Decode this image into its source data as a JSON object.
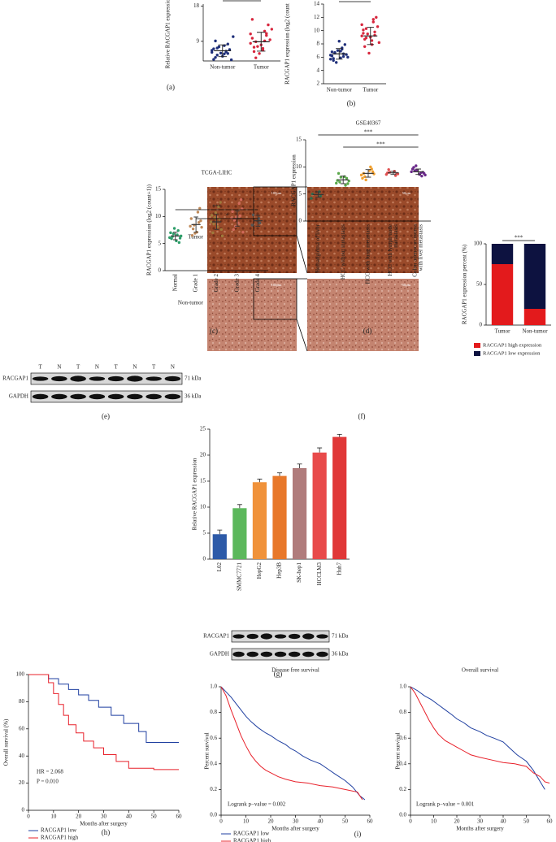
{
  "chart_data": [
    {
      "type": "dot",
      "caption": "(a)",
      "y_label": "Relative RACGAP1 expression",
      "categories": [
        "Non-tumor",
        "Tumor"
      ],
      "values": [
        [
          6.2,
          5.8,
          7.1,
          6.5,
          4.9,
          8.3,
          5.5,
          6.9,
          7.6,
          4.3,
          6.0,
          10.2,
          5.2,
          6.7,
          7.9,
          4.4,
          6.3,
          9.1,
          5.9,
          7.3
        ],
        [
          8.5,
          7.2,
          9.8,
          11.6,
          6.4,
          10.5,
          8.9,
          13.2,
          7.7,
          9.4,
          5.9,
          12.1,
          8.1,
          10.9,
          6.8,
          14.6,
          9.1,
          7.5,
          11.0,
          4.8
        ]
      ],
      "mean": [
        6.6,
        8.9
      ],
      "sd": [
        1.5,
        2.4
      ],
      "colors": [
        "#1f2f7a",
        "#d7263d"
      ],
      "bar_color": "#222",
      "ylim": [
        4,
        18.5
      ],
      "yticks": [
        9,
        18
      ]
    },
    {
      "type": "dot",
      "caption": "(b)",
      "y_label": "RACGAP1 expression (log2 (count",
      "categories": [
        "Non-tumor",
        "Tumor"
      ],
      "values": [
        [
          6.3,
          5.9,
          6.8,
          7.2,
          5.5,
          6.1,
          6.6,
          7.9,
          5.2,
          6.4,
          7.0,
          6.0,
          8.4,
          5.7,
          6.9,
          6.2,
          7.4,
          5.8,
          6.5,
          6.7
        ],
        [
          9.2,
          8.5,
          10.1,
          11.3,
          7.6,
          9.8,
          8.9,
          12.0,
          9.5,
          10.6,
          6.6,
          8.2,
          9.0,
          10.9,
          7.9,
          9.6,
          11.7,
          8.7,
          9.3,
          10.3
        ]
      ],
      "mean": [
        6.5,
        9.2
      ],
      "sd": [
        0.8,
        1.3
      ],
      "colors": [
        "#1f2f7a",
        "#d7263d"
      ],
      "bar_color": "#222",
      "ylim": [
        2,
        14
      ],
      "yticks": [
        2,
        4,
        6,
        8,
        10,
        12,
        14
      ]
    },
    {
      "type": "dot",
      "caption": "(c)",
      "title": "TCGA-LIHC",
      "y_label": "RACGAP1 expression (log2 (count+1))",
      "rotate_labels": true,
      "categories": [
        "Normal",
        "Grade 1",
        "Grade 2",
        "Grade 3",
        "Grade 4"
      ],
      "values": [
        [
          6.1,
          5.5,
          7.0,
          6.6,
          5.9,
          7.4,
          6.3,
          5.2,
          6.8,
          6.0,
          7.8,
          6.4
        ],
        [
          8.2,
          7.1,
          9.6,
          10.8,
          6.5,
          8.9,
          7.7,
          11.5,
          8.4,
          9.2,
          6.9,
          8.0
        ],
        [
          9.0,
          8.1,
          10.2,
          11.8,
          7.0,
          9.5,
          8.6,
          12.6,
          9.8,
          7.6,
          10.7,
          6.4
        ],
        [
          9.7,
          8.8,
          10.9,
          12.4,
          7.6,
          10.1,
          9.3,
          13.1,
          8.2,
          11.4,
          9.9,
          7.1
        ],
        [
          8.4,
          9.6,
          10.3,
          8.8
        ]
      ],
      "mean": [
        6.4,
        8.5,
        9.0,
        9.6,
        9.2
      ],
      "sd": [
        0.7,
        1.4,
        1.4,
        1.4,
        1.0
      ],
      "colors": [
        "#2e9e6a",
        "#c08a5a",
        "#9e7a3c",
        "#d06a5a",
        "#555555"
      ],
      "bar_color": "#333",
      "ylim": [
        0,
        15
      ],
      "yticks": [
        0,
        5,
        10,
        15
      ],
      "brackets": [
        {
          "label": "***",
          "from": 0,
          "to": 4
        },
        {
          "label": "*",
          "from": 1,
          "to": 4
        }
      ]
    },
    {
      "type": "dot",
      "caption": "(d)",
      "title": "GSE40367",
      "y_label": "RACGAP1 expression",
      "rotate_labels": true,
      "categories": [
        [
          "Hemangioma of liver"
        ],
        [
          "HCC without metastasis"
        ],
        [
          "HCC with lung metastasis"
        ],
        [
          "HCC with lymph node",
          "metastasis"
        ],
        [
          "Colon adenocarcinoma",
          "with liver metastasis"
        ]
      ],
      "values": [
        [
          4.2,
          5.4,
          5.0,
          4.6
        ],
        [
          7.0,
          8.2,
          7.5,
          6.6,
          8.8,
          7.9,
          7.2,
          6.9,
          8.1,
          7.4
        ],
        [
          8.5,
          9.3,
          7.9,
          10.0,
          8.8,
          9.6,
          8.2,
          9.1,
          7.6,
          8.7
        ],
        [
          8.6,
          9.2,
          8.9,
          8.4,
          9.5,
          8.8,
          9.0,
          8.7
        ],
        [
          9.1,
          8.6,
          9.6,
          8.9,
          9.9,
          8.3,
          9.3,
          9.0,
          10.2,
          8.8,
          9.4,
          8.5
        ]
      ],
      "mean": [
        4.9,
        7.6,
        8.8,
        8.9,
        9.1
      ],
      "sd": [
        0.5,
        0.7,
        0.7,
        0.3,
        0.5
      ],
      "colors": [
        "#2e6e4e",
        "#5aa84a",
        "#f0a030",
        "#e05050",
        "#6a2a8a"
      ],
      "bar_color": "#333",
      "ylim": [
        0,
        15
      ],
      "yticks": [
        0,
        5,
        10,
        15
      ],
      "brackets": [
        {
          "label": "***",
          "from": 0,
          "to": 4
        },
        {
          "label": "***",
          "from": 1,
          "to": 4
        }
      ]
    },
    {
      "type": "stacked_bar",
      "caption": "(f)",
      "y_label": "RACGAP1 expression percent (%)",
      "categories": [
        "Tumor",
        "Non-tumor"
      ],
      "series": [
        {
          "name": "RACGAP1 high expression",
          "color": "#e31a1c",
          "values": [
            75,
            20
          ]
        },
        {
          "name": "RACGAP1 low expression",
          "color": "#0d1240",
          "values": [
            25,
            80
          ]
        }
      ],
      "ylim": [
        0,
        100
      ],
      "yticks": [
        0,
        50,
        100
      ],
      "brackets": [
        {
          "label": "***",
          "from": 0,
          "to": 1
        }
      ]
    },
    {
      "type": "bar",
      "caption": "(g)",
      "y_label": "Relative RACGAP1 expression",
      "rotate_labels": true,
      "categories": [
        "L02",
        "SMMC7721",
        "HepG2",
        "Hep3B",
        "SK-hep1",
        "HCCLM3",
        "Huh7"
      ],
      "values": [
        4.8,
        9.8,
        14.8,
        16,
        17.5,
        20.5,
        23.5
      ],
      "errors": [
        0.8,
        0.7,
        0.6,
        0.6,
        0.8,
        0.9,
        0.5
      ],
      "colors": [
        "#2d5aa8",
        "#5cb85c",
        "#f0923a",
        "#e8782a",
        "#b07c7c",
        "#e84a4a",
        "#e03838"
      ],
      "ylim": [
        0,
        25
      ],
      "yticks": [
        0,
        5,
        10,
        15,
        20,
        25
      ]
    },
    {
      "type": "line",
      "caption": "(h)",
      "y_label": "Overall survival (%)",
      "x_label": "Months after surgery",
      "annotations": [
        "HR = 2.068",
        "P = 0.010"
      ],
      "series": [
        {
          "name": "RACGAP1 low",
          "color": "#1f3fa0",
          "x": [
            0,
            8,
            8,
            12,
            12,
            16,
            16,
            20,
            20,
            24,
            24,
            28,
            28,
            33,
            33,
            38,
            38,
            44,
            44,
            47,
            47,
            60
          ],
          "values": [
            100,
            100,
            97,
            97,
            93,
            93,
            89,
            89,
            85,
            85,
            81,
            81,
            76,
            76,
            70,
            70,
            64,
            64,
            58,
            58,
            50,
            50
          ]
        },
        {
          "name": "RACGAP1 high",
          "color": "#e8202a",
          "x": [
            0,
            8,
            8,
            10,
            10,
            12,
            12,
            14,
            14,
            16,
            16,
            19,
            19,
            22,
            22,
            26,
            26,
            30,
            30,
            35,
            35,
            40,
            40,
            50,
            50,
            60
          ],
          "values": [
            100,
            100,
            94,
            94,
            86,
            86,
            78,
            78,
            70,
            70,
            63,
            63,
            57,
            57,
            51,
            51,
            46,
            46,
            41,
            41,
            36,
            36,
            31,
            31,
            30,
            30
          ]
        }
      ],
      "xlim": [
        0,
        60
      ],
      "xticks": [
        0,
        10,
        20,
        30,
        40,
        50,
        60
      ],
      "ylim": [
        0,
        100
      ],
      "yticks": [
        0,
        20,
        40,
        60,
        80,
        100
      ]
    },
    {
      "type": "line",
      "caption": "(i)",
      "title": "Disease free survival",
      "y_label": "Percent survival",
      "x_label": "Months after surgery",
      "annotations": [
        "Logrank p−value = 0.002"
      ],
      "series": [
        {
          "name": "RACGAP1 low",
          "color": "#1f3fa0",
          "x": [
            0,
            2,
            4,
            6,
            8,
            10,
            12,
            15,
            18,
            20,
            23,
            26,
            28,
            30,
            33,
            36,
            40,
            43,
            46,
            50,
            53,
            56,
            58
          ],
          "values": [
            1,
            0.96,
            0.92,
            0.87,
            0.82,
            0.77,
            0.73,
            0.68,
            0.64,
            0.62,
            0.58,
            0.55,
            0.52,
            0.5,
            0.46,
            0.43,
            0.4,
            0.36,
            0.32,
            0.27,
            0.22,
            0.15,
            0.12
          ]
        },
        {
          "name": "RACGAP1 high",
          "color": "#e8202a",
          "x": [
            0,
            2,
            4,
            6,
            8,
            10,
            12,
            14,
            16,
            18,
            20,
            23,
            26,
            30,
            35,
            40,
            45,
            50,
            55,
            57
          ],
          "values": [
            1,
            0.93,
            0.82,
            0.72,
            0.62,
            0.54,
            0.47,
            0.42,
            0.38,
            0.35,
            0.33,
            0.3,
            0.28,
            0.26,
            0.25,
            0.23,
            0.22,
            0.2,
            0.18,
            0.12
          ]
        }
      ],
      "xlim": [
        0,
        60
      ],
      "xticks": [
        0,
        10,
        20,
        30,
        40,
        50,
        60
      ],
      "ylim": [
        0,
        1
      ],
      "yticks": [
        {
          "value": 0,
          "label": "0.0"
        },
        0.2,
        0.4,
        0.6,
        0.8,
        {
          "value": 1,
          "label": "1.0"
        }
      ]
    },
    {
      "type": "line",
      "title": "Overall survival",
      "y_label": "Percent survival",
      "x_label": "Months after surgery",
      "annotations": [
        "Logrank p−value = 0.001"
      ],
      "series": [
        {
          "color": "#1f3fa0",
          "x": [
            0,
            3,
            6,
            9,
            12,
            15,
            18,
            20,
            23,
            26,
            30,
            33,
            36,
            40,
            43,
            46,
            50,
            53,
            56,
            58
          ],
          "values": [
            1,
            0.97,
            0.93,
            0.9,
            0.86,
            0.82,
            0.78,
            0.75,
            0.72,
            0.68,
            0.65,
            0.62,
            0.6,
            0.57,
            0.52,
            0.47,
            0.42,
            0.35,
            0.26,
            0.2
          ]
        },
        {
          "color": "#e8202a",
          "x": [
            0,
            2,
            4,
            6,
            8,
            10,
            12,
            15,
            18,
            20,
            23,
            26,
            30,
            35,
            40,
            45,
            50,
            53,
            56,
            58,
            60
          ],
          "values": [
            1,
            0.95,
            0.88,
            0.81,
            0.74,
            0.68,
            0.63,
            0.58,
            0.55,
            0.53,
            0.5,
            0.47,
            0.45,
            0.43,
            0.41,
            0.4,
            0.38,
            0.33,
            0.3,
            0.26,
            0.25
          ]
        }
      ],
      "xlim": [
        0,
        60
      ],
      "xticks": [
        0,
        10,
        20,
        30,
        40,
        50,
        60
      ],
      "ylim": [
        0,
        1
      ],
      "yticks": [
        {
          "value": 0,
          "label": "0.0"
        },
        0.2,
        0.4,
        0.6,
        0.8,
        {
          "value": 1,
          "label": "1.0"
        }
      ]
    }
  ],
  "blot_e": {
    "lanes": [
      "T",
      "N",
      "T",
      "N",
      "T",
      "N",
      "T",
      "N"
    ],
    "rows": [
      "RACGAP1",
      "GAPDH"
    ],
    "sizes": [
      "71 kDa",
      "36 kDa"
    ],
    "caption": "(e)"
  },
  "ihc_f": {
    "rows": [
      "Tumor",
      "Non-tumor"
    ],
    "scale_labels": [
      "100μm",
      "50μm"
    ]
  },
  "blot_g": {
    "rows": [
      "RACGAP1",
      "GAPDH"
    ],
    "sizes": [
      "71 kDa",
      "36 kDa"
    ]
  }
}
